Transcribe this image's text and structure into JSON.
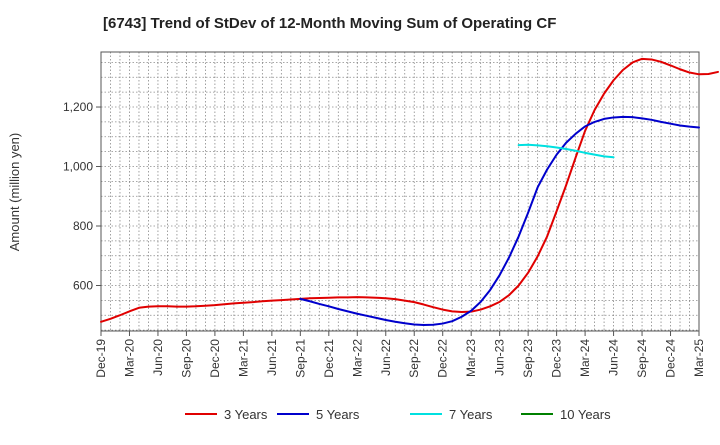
{
  "chart_data": {
    "type": "line",
    "title": "[6743]  Trend of StDev of 12-Month Moving Sum of Operating CF",
    "xlabel": "",
    "ylabel": "Amount (million yen)",
    "x_ticks": [
      "Dec-19",
      "Mar-20",
      "Jun-20",
      "Sep-20",
      "Dec-20",
      "Mar-21",
      "Jun-21",
      "Sep-21",
      "Dec-21",
      "Mar-22",
      "Jun-22",
      "Sep-22",
      "Dec-22",
      "Mar-23",
      "Jun-23",
      "Sep-23",
      "Dec-23",
      "Mar-24",
      "Jun-24",
      "Sep-24",
      "Dec-24",
      "Mar-25"
    ],
    "y_ticks": [
      600,
      800,
      1000,
      1200
    ],
    "y_tick_labels": [
      "600",
      "800",
      "1,000",
      "1,200"
    ],
    "ylim": [
      447,
      1385
    ],
    "grid": true,
    "legend_position": "bottom",
    "series": [
      {
        "name": "3 Years",
        "color": "#e00000",
        "x_start": "Dec-19",
        "values": [
          478,
          488,
          500,
          513,
          525,
          529,
          530,
          530,
          529,
          529,
          530,
          532,
          534,
          537,
          540,
          542,
          544,
          547,
          549,
          551,
          553,
          555,
          557,
          558,
          559,
          560,
          560,
          561,
          560,
          559,
          557,
          554,
          549,
          544,
          536,
          527,
          519,
          513,
          511,
          512,
          519,
          530,
          545,
          568,
          600,
          643,
          698,
          765,
          850,
          937,
          1030,
          1120,
          1190,
          1245,
          1290,
          1325,
          1350,
          1362,
          1360,
          1352,
          1340,
          1327,
          1316,
          1310,
          1311,
          1318
        ]
      },
      {
        "name": "5 Years",
        "color": "#0000cc",
        "x_start": "Sep-21",
        "values": [
          555,
          547,
          538,
          530,
          521,
          513,
          505,
          498,
          491,
          484,
          478,
          473,
          469,
          467,
          468,
          472,
          480,
          495,
          515,
          545,
          585,
          635,
          695,
          765,
          845,
          930,
          990,
          1040,
          1080,
          1110,
          1135,
          1150,
          1160,
          1165,
          1167,
          1166,
          1162,
          1157,
          1150,
          1144,
          1138,
          1134,
          1131
        ]
      },
      {
        "name": "7 Years",
        "color": "#00e0e0",
        "x_start": "Aug-23",
        "values": [
          1072,
          1073,
          1071,
          1068,
          1064,
          1059,
          1053,
          1046,
          1040,
          1034,
          1031
        ]
      },
      {
        "name": "10 Years",
        "color": "#008000",
        "x_start": "",
        "values": []
      }
    ]
  }
}
